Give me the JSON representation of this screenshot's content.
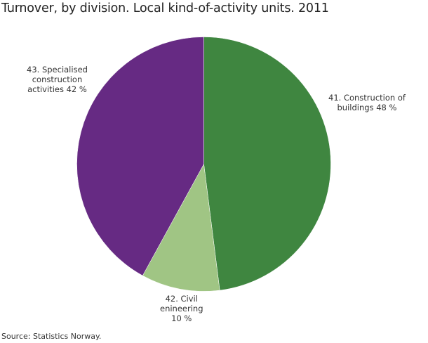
{
  "chart_data": {
    "type": "pie",
    "title": "Turnover, by division. Local kind-of-activity units. 2011",
    "slices": [
      {
        "code": "41",
        "label": "41.  Construction of buildings 48 %",
        "label_lines": [
          "41.  Construction of",
          "buildings 48 %"
        ],
        "value": 48,
        "color": "#3f8640"
      },
      {
        "code": "42",
        "label": "42. Civil enineering 10 %",
        "label_lines": [
          "42. Civil",
          "enineering",
          "10 %"
        ],
        "value": 10,
        "color": "#a0c584"
      },
      {
        "code": "43",
        "label": "43. Specialised construction activities 42 %",
        "label_lines": [
          "43. Specialised",
          "construction",
          "activities 42 %"
        ],
        "value": 42,
        "color": "#662a83"
      }
    ],
    "start_angle_deg": 0,
    "direction": "clockwise",
    "legend": "none (direct labels)",
    "source": "Source: Statistics Norway."
  },
  "title": "Turnover, by division. Local kind-of-activity units. 2011",
  "labels": {
    "l41": [
      "41.  Construction of",
      "buildings 48 %"
    ],
    "l42": [
      "42. Civil",
      "enineering",
      "10 %"
    ],
    "l43": [
      "43. Specialised",
      "construction",
      "activities 42 %"
    ]
  },
  "source": "Source: Statistics Norway."
}
